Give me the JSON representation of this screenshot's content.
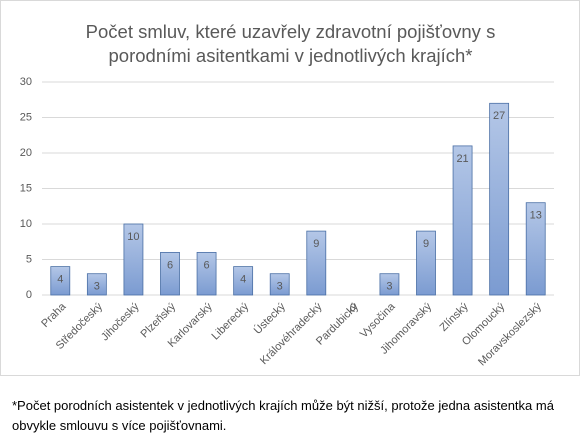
{
  "chart_data": {
    "type": "bar",
    "title": "Počet smluv, které uzavřely zdravotní pojišťovny s porodními asitentkami v jednotlivých krajích*",
    "categories": [
      "Praha",
      "Středočeský",
      "Jihočeský",
      "Plzeňský",
      "Karlovarský",
      "Liberecký",
      "Ústecký",
      "Královéhradecký",
      "Pardubický",
      "Vysočina",
      "Jihomoravský",
      "Zlínský",
      "Olomoucký",
      "Moravskoslezský"
    ],
    "values": [
      4,
      3,
      10,
      6,
      6,
      4,
      3,
      9,
      0,
      3,
      9,
      21,
      27,
      13
    ],
    "color": "#8eaadb",
    "ylim": [
      0,
      30
    ],
    "yticks": [
      0,
      5,
      10,
      15,
      20,
      25,
      30
    ],
    "grid": true,
    "data_labels": true,
    "note": "*Počet porodních asistentek v jednotlivých krajích může být nižší, protože jedna asistentka má obvykle smlouvu s více pojišťovnami."
  }
}
